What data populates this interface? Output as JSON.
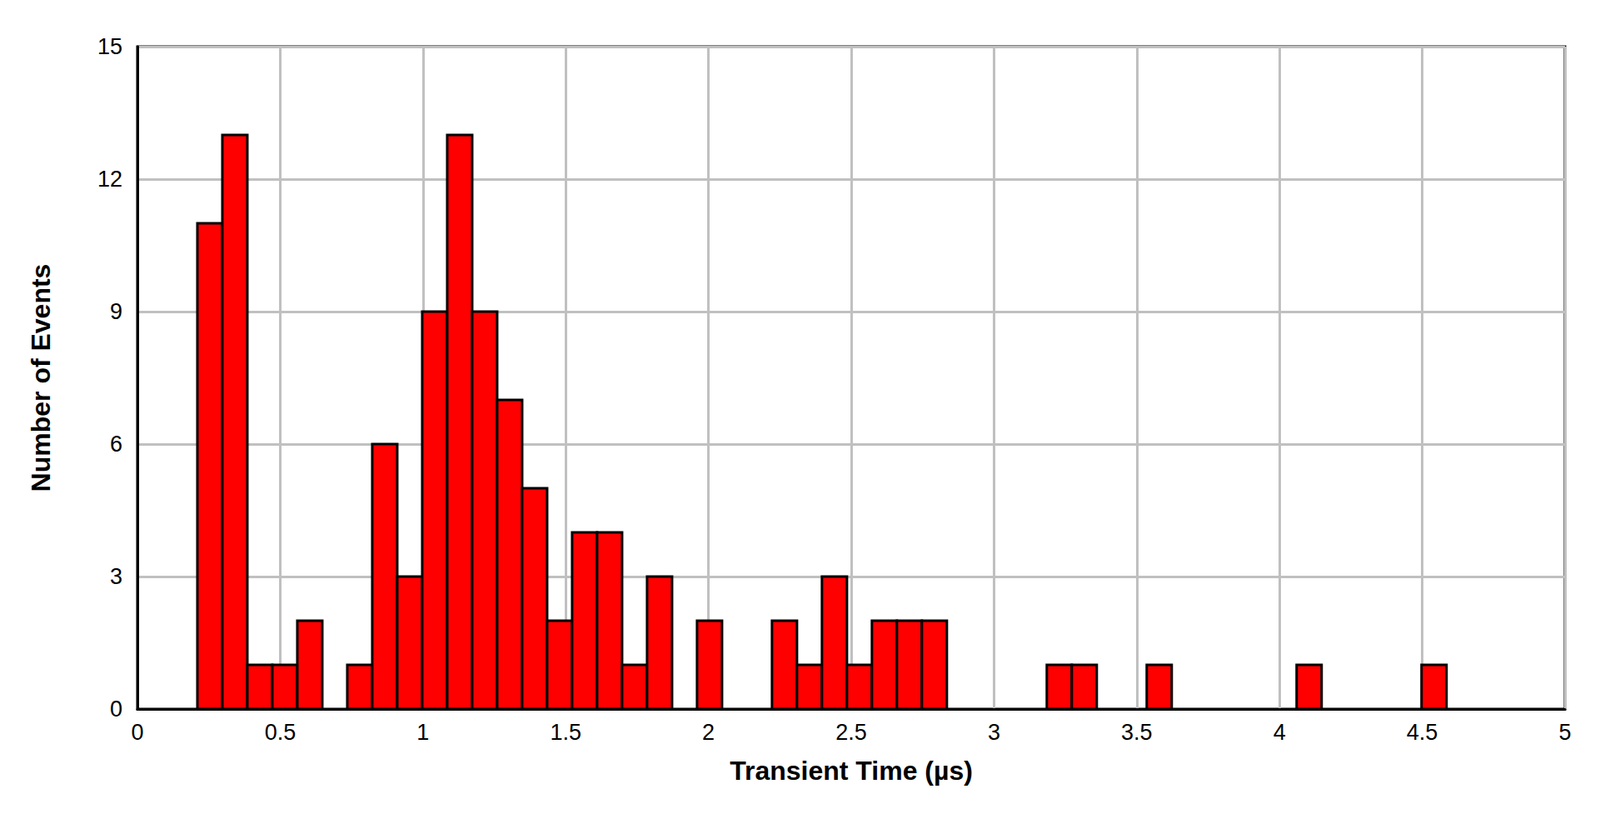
{
  "chart_data": {
    "type": "histogram",
    "x_label": "Transient Time (µs)",
    "y_label": "Number of Events",
    "bins": [
      0.21,
      0.2975,
      0.385,
      0.4725,
      0.56,
      0.6475,
      0.735,
      0.8225,
      0.91,
      0.9975,
      1.085,
      1.1725,
      1.26,
      1.3475,
      1.435,
      1.5225,
      1.61,
      1.6975,
      1.785,
      1.8725,
      1.96,
      2.0475,
      2.135,
      2.2225,
      2.31,
      2.3975,
      2.485,
      2.5725,
      2.66,
      2.7475,
      2.835,
      2.9225,
      3.01,
      3.0975,
      3.185,
      3.2725,
      3.36,
      3.4475,
      3.535,
      3.6225,
      3.71,
      3.7975,
      3.885,
      3.9725,
      4.06,
      4.1475,
      4.235,
      4.3225,
      4.41,
      4.4975,
      4.585
    ],
    "values": [
      11,
      13,
      1,
      1,
      2,
      0,
      1,
      6,
      3,
      9,
      13,
      9,
      7,
      5,
      2,
      4,
      4,
      1,
      3,
      0,
      2,
      0,
      0,
      2,
      1,
      3,
      1,
      2,
      2,
      2,
      0,
      0,
      0,
      0,
      1,
      1,
      0,
      0,
      1,
      0,
      0,
      0,
      0,
      0,
      1,
      0,
      0,
      0,
      0,
      1
    ],
    "color": "#ff0000",
    "xlim": [
      0,
      5
    ],
    "xticks": [
      0,
      0.5,
      1,
      1.5,
      2,
      2.5,
      3,
      3.5,
      4,
      4.5,
      5
    ],
    "ylim": [
      0,
      15
    ],
    "yticks": [
      0,
      3,
      6,
      9,
      12,
      15
    ],
    "grid": true
  }
}
